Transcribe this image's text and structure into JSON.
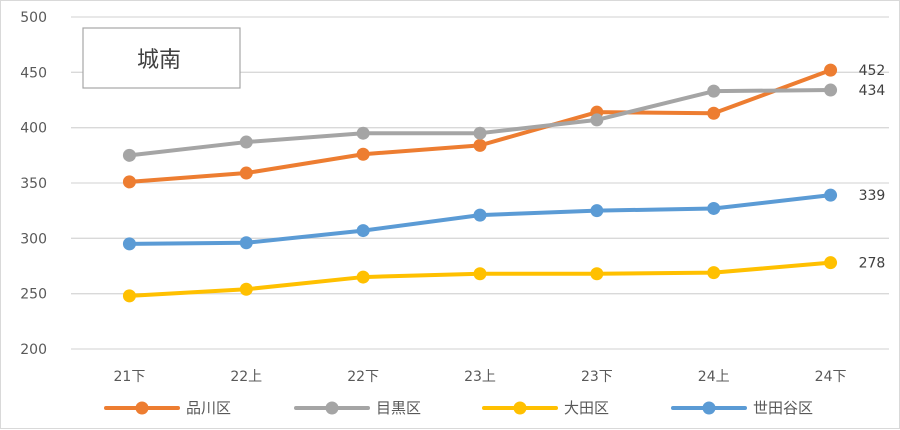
{
  "chart_data": {
    "type": "line",
    "title": "城南",
    "xlabel": "",
    "ylabel": "",
    "ylim": [
      200,
      500
    ],
    "yticks": [
      200,
      250,
      300,
      350,
      400,
      450,
      500
    ],
    "categories": [
      "21下",
      "22上",
      "22下",
      "23上",
      "23下",
      "24上",
      "24下"
    ],
    "grid": true,
    "legend_position": "bottom",
    "series": [
      {
        "name": "品川区",
        "color": "#ED7D31",
        "values": [
          351,
          359,
          376,
          384,
          414,
          413,
          452
        ],
        "end_label": "452"
      },
      {
        "name": "目黒区",
        "color": "#A5A5A5",
        "values": [
          375,
          387,
          395,
          395,
          407,
          433,
          434
        ],
        "end_label": "434"
      },
      {
        "name": "大田区",
        "color": "#FFC000",
        "values": [
          248,
          254,
          265,
          268,
          268,
          269,
          278
        ],
        "end_label": "278"
      },
      {
        "name": "世田谷区",
        "color": "#5B9BD5",
        "values": [
          295,
          296,
          307,
          321,
          325,
          327,
          339
        ],
        "end_label": "339"
      }
    ]
  }
}
